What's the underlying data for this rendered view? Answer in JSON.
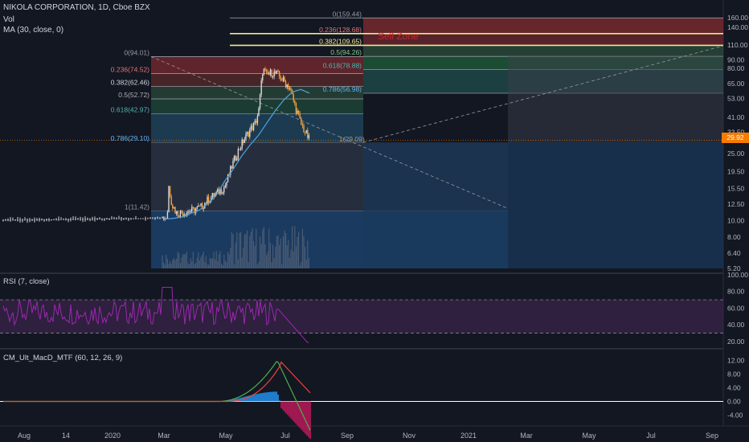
{
  "header": {
    "symbol_line": "NIKOLA CORPORATION, 1D, Cboe BZX",
    "vol_label": "Vol",
    "ma_label": "MA (30, close, 0)"
  },
  "last_price": "29.92",
  "colors": {
    "background": "#131722",
    "up_candle": "#d8d8d8",
    "down_candle": "#f7a239",
    "ma_line": "#4fa3e0",
    "rsi_line": "#9c27b0",
    "macd_line": "#4caf50",
    "signal_line": "#f44336",
    "last_price_badge": "#f57c00",
    "sell_zone_text": "#c62828"
  },
  "annotations": {
    "sell_zone": "Sell Zone",
    "target_point": "1(29.09)"
  },
  "fib_left": {
    "levels": [
      {
        "label": "0(94.01)",
        "price": 94.01
      },
      {
        "label": "0.236(74.52)",
        "price": 74.52
      },
      {
        "label": "0.382(62.46)",
        "price": 62.46
      },
      {
        "label": "0.5(52.72)",
        "price": 52.72
      },
      {
        "label": "0.618(42.97)",
        "price": 42.97
      },
      {
        "label": "0.786(29.10)",
        "price": 29.1
      },
      {
        "label": "1(11.42)",
        "price": 11.42
      }
    ]
  },
  "fib_right": {
    "levels": [
      {
        "label": "0(159.44)",
        "price": 159.44
      },
      {
        "label": "0.236(128.68)",
        "price": 128.68
      },
      {
        "label": "0.382(109.65)",
        "price": 109.65
      },
      {
        "label": "0.5(94.26)",
        "price": 94.26
      },
      {
        "label": "0.618(78.88)",
        "price": 78.88
      },
      {
        "label": "0.786(56.98)",
        "price": 56.98
      }
    ]
  },
  "price_axis": {
    "ticks": [
      "160.00",
      "140.00",
      "110.00",
      "90.00",
      "80.00",
      "65.00",
      "53.00",
      "41.00",
      "33.50",
      "25.00",
      "19.50",
      "15.50",
      "12.50",
      "10.00",
      "8.00",
      "6.40",
      "5.20"
    ],
    "values": [
      160,
      140,
      110,
      90,
      80,
      65,
      53,
      41,
      33.5,
      25,
      19.5,
      15.5,
      12.5,
      10,
      8,
      6.4,
      5.2
    ]
  },
  "time_axis": {
    "ticks": [
      "Aug",
      "14",
      "2020",
      "Mar",
      "May",
      "Jul",
      "Sep",
      "Nov",
      "2021",
      "Mar",
      "May",
      "Jul",
      "Sep"
    ]
  },
  "rsi": {
    "label": "RSI (7, close)",
    "ticks": [
      "100.00",
      "80.00",
      "60.00",
      "40.00",
      "20.00"
    ],
    "values": [
      100,
      80,
      60,
      40,
      20
    ],
    "upper_band": 70,
    "lower_band": 30
  },
  "macd": {
    "label": "CM_Ult_MacD_MTF (60, 12, 26, 9)",
    "ticks": [
      "12.00",
      "8.00",
      "4.00",
      "0.00",
      "-4.00"
    ],
    "values": [
      12,
      8,
      4,
      0,
      -4
    ]
  },
  "chart_data": {
    "type": "candlestick",
    "title": "NIKOLA CORPORATION, 1D, Cboe BZX",
    "y_scale": "log",
    "ylim": [
      5.2,
      165
    ],
    "series": [
      {
        "name": "MA (30, close, 0)",
        "values": [
          10.2,
          10.3,
          10.5,
          11,
          11.5,
          12.5,
          14,
          17,
          20,
          24,
          28,
          32,
          38,
          45,
          52,
          58,
          60,
          57
        ]
      }
    ],
    "price_path": [
      10.1,
      10.1,
      10.15,
      10.2,
      10.25,
      10.3,
      10.3,
      10.35,
      10.4,
      10.45,
      10.5,
      16,
      12.5,
      11,
      11.2,
      11.5,
      12,
      13.5,
      14.5,
      16,
      22,
      27,
      31,
      35,
      38,
      45,
      80,
      72,
      76,
      74,
      68,
      62,
      50,
      38,
      30
    ]
  }
}
